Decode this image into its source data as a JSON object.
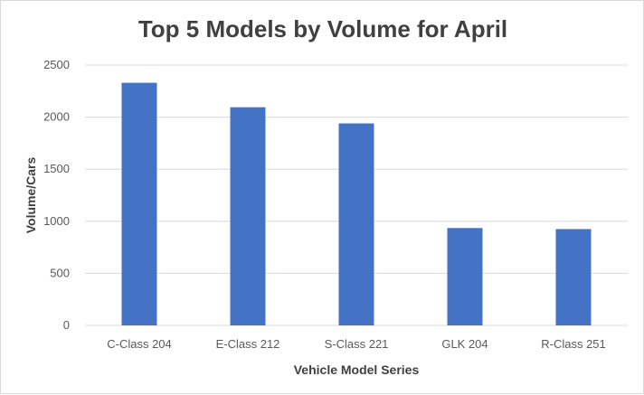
{
  "chart_data": {
    "type": "bar",
    "title": "Top 5 Models by Volume for April",
    "xlabel": "Vehicle Model Series",
    "ylabel": "Volume/Cars",
    "categories": [
      "C-Class 204",
      "E-Class 212",
      "S-Class 221",
      "GLK 204",
      "R-Class 251"
    ],
    "values": [
      2330,
      2095,
      1940,
      935,
      925
    ],
    "ylim": [
      0,
      2500
    ],
    "yticks": [
      "0",
      "500",
      "1000",
      "1500",
      "2000",
      "2500"
    ],
    "grid": true,
    "legend": "none",
    "bar_color": "#4472C4",
    "grid_color": "#d9d9d9"
  }
}
